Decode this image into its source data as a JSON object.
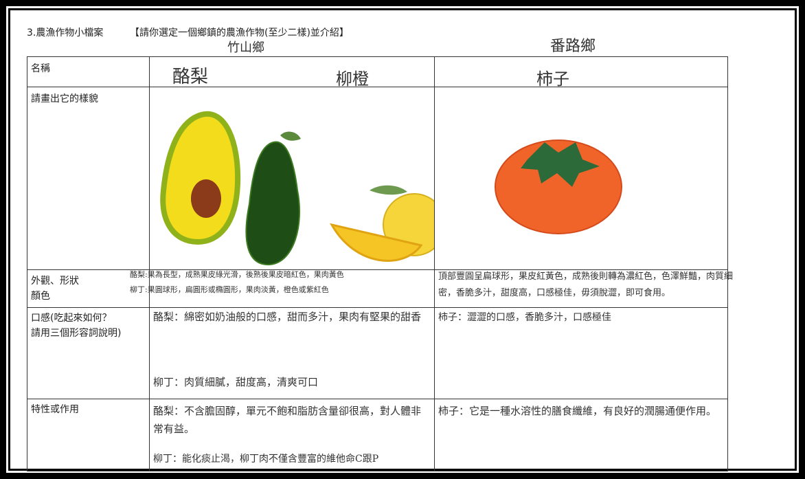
{
  "header": {
    "title": "3.農漁作物小檔案",
    "instruction": "【請你選定一個鄉鎮的農漁作物(至少二樣)並介紹】"
  },
  "townships": [
    "竹山鄉",
    "番路鄉"
  ],
  "table": {
    "row_labels": [
      "名稱",
      "請畫出它的樣貌",
      "外觀、形狀\n顏色",
      "口感(吃起來如何？\n請用三個形容詞說明)",
      "特性或作用"
    ],
    "names": [
      [
        "酪梨",
        "柳橙"
      ],
      [
        "柿子"
      ]
    ],
    "appearance": [
      [
        "酪梨:果為長型，成熟果皮綠光滑，後熟後果皮暗紅色，果肉黃色",
        "柳丁:果圓球形，扁圓形或橢圓形，果肉淡黃，橙色或紫紅色"
      ],
      [
        "頂部豐圓呈扁球形，果皮紅黃色，成熟後則轉為濃紅色，色澤鮮豔，肉質細密，香脆多汁，甜度高，口感極佳，毋須脫澀，即可食用。"
      ]
    ],
    "taste": [
      [
        "酪梨：綿密如奶油般的口感，甜而多汁，果肉有堅果的甜香",
        "柳丁：肉質細膩，甜度高，清爽可口"
      ],
      [
        "柿子：澀澀的口感，香脆多汁，口感極佳"
      ]
    ],
    "features": [
      [
        "酪梨：不含膽固醇，單元不飽和脂肪含量卻很高，對人體非常有益。",
        "柳丁：能化痰止渴，柳丁肉不僅含豐富的維他命C跟P"
      ],
      [
        "柿子：它是一種水溶性的膳食纖維，有良好的潤腸通便作用。"
      ]
    ]
  }
}
